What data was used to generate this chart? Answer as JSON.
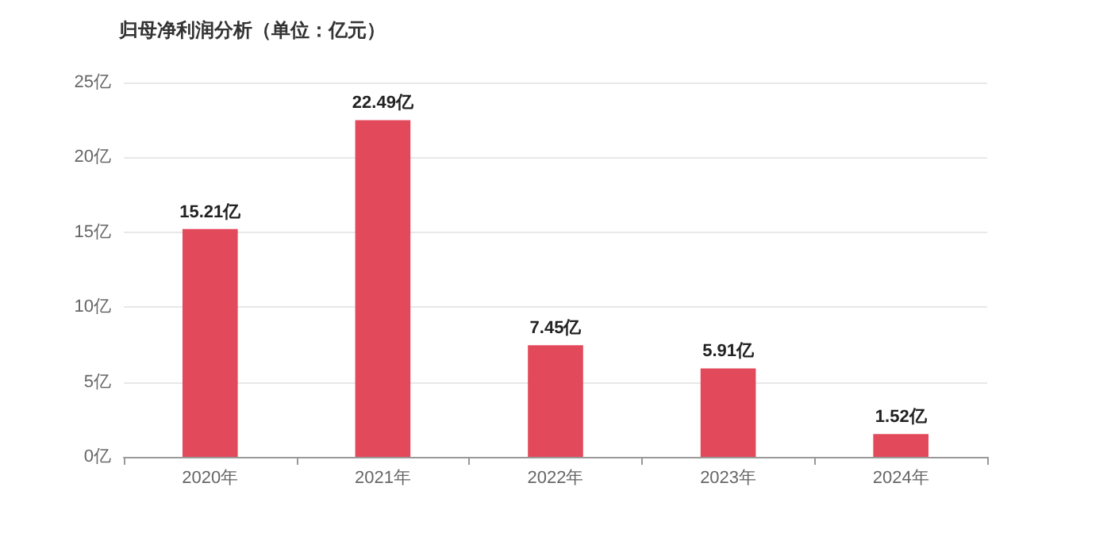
{
  "chart_data": {
    "type": "bar",
    "title": "归母净利润分析（单位：亿元）",
    "categories": [
      "2020年",
      "2021年",
      "2022年",
      "2023年",
      "2024年"
    ],
    "values": [
      15.21,
      22.49,
      7.45,
      5.91,
      1.52
    ],
    "value_labels": [
      "15.21亿",
      "22.49亿",
      "7.45亿",
      "5.91亿",
      "1.52亿"
    ],
    "color": "#e24a5c",
    "ylim": [
      0,
      25
    ],
    "yticks": [
      {
        "value": 0,
        "label": "0亿"
      },
      {
        "value": 5,
        "label": "5亿"
      },
      {
        "value": 10,
        "label": "10亿"
      },
      {
        "value": 15,
        "label": "15亿"
      },
      {
        "value": 20,
        "label": "20亿"
      },
      {
        "value": 25,
        "label": "25亿"
      }
    ],
    "grid": "y"
  }
}
